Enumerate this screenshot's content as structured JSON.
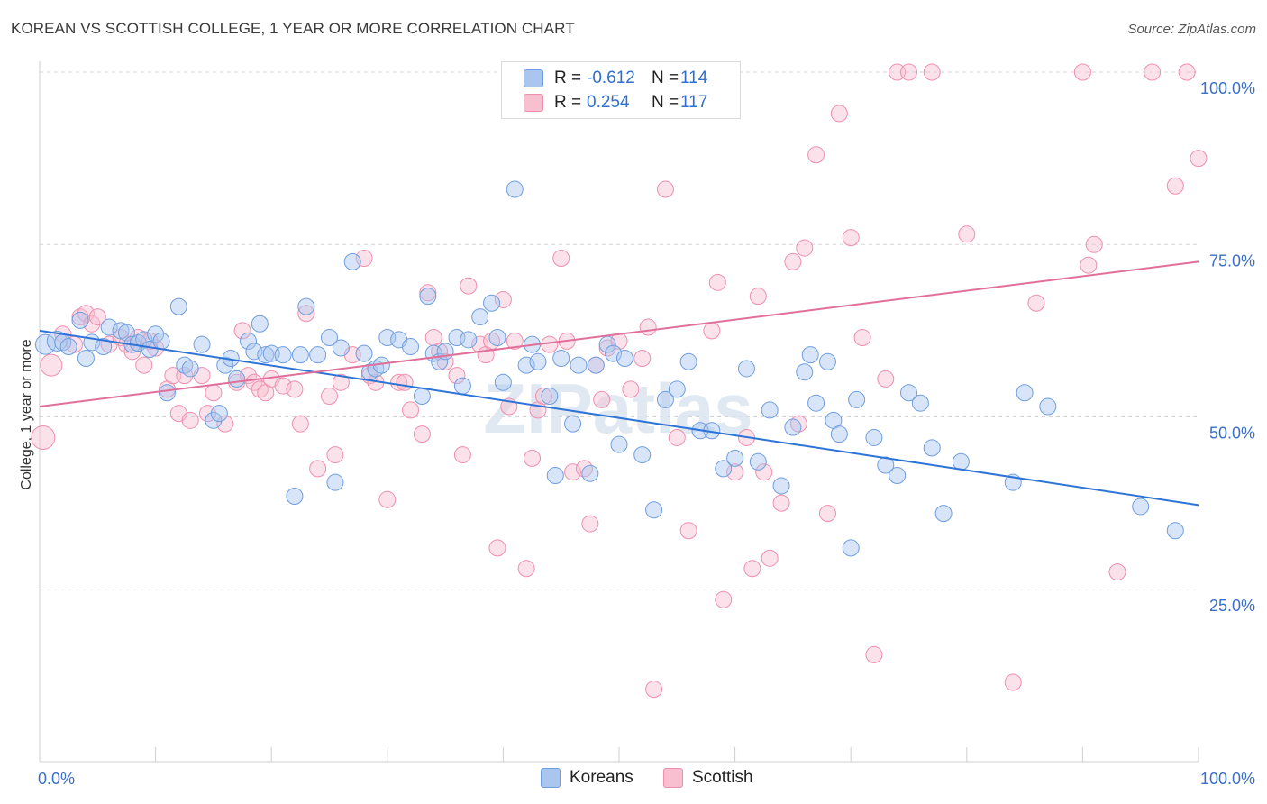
{
  "header": {
    "title": "KOREAN VS SCOTTISH COLLEGE, 1 YEAR OR MORE CORRELATION CHART",
    "source": "Source: ZipAtlas.com"
  },
  "legend": {
    "rows": [
      {
        "r_label": "R =",
        "r_value": "-0.612",
        "n_label": "N =",
        "n_value": "114"
      },
      {
        "r_label": "R =",
        "r_value": "0.254",
        "n_label": "N =",
        "n_value": "117"
      }
    ]
  },
  "bottom_legend": [
    "Koreans",
    "Scottish"
  ],
  "colors": {
    "koreans_fill": "#a9c6ef",
    "koreans_stroke": "#6f9ee0",
    "koreans_line": "#2e74d6",
    "scottish_fill": "#f7bfd0",
    "scottish_stroke": "#ee8fae",
    "scottish_line": "#e0709a",
    "axis_text": "#3a6fc9"
  },
  "chart_data": {
    "type": "scatter",
    "title": "KOREAN VS SCOTTISH COLLEGE, 1 YEAR OR MORE CORRELATION CHART",
    "xlabel": "",
    "ylabel": "College, 1 year or more",
    "xlim": [
      0,
      100
    ],
    "ylim": [
      0,
      100
    ],
    "x_tick_labels": [
      "0.0%",
      "100.0%"
    ],
    "y_tick_labels": [
      "25.0%",
      "50.0%",
      "75.0%",
      "100.0%"
    ],
    "y_ticks": [
      25,
      50,
      75,
      100
    ],
    "grid": true,
    "watermark": "ZIPatlas",
    "series": [
      {
        "name": "Koreans",
        "r": -0.612,
        "n": 114,
        "trend": {
          "x": [
            0,
            100
          ],
          "y": [
            62.5,
            37.2
          ]
        },
        "points": [
          [
            0.5,
            60.5
          ],
          [
            1.5,
            61
          ],
          [
            2,
            60.8
          ],
          [
            2.5,
            60.2
          ],
          [
            3.5,
            64
          ],
          [
            4,
            58.5
          ],
          [
            4.5,
            60.8
          ],
          [
            5.5,
            60.2
          ],
          [
            6,
            63
          ],
          [
            7,
            62.5
          ],
          [
            7.5,
            62.2
          ],
          [
            8,
            60.5
          ],
          [
            8.5,
            60.7
          ],
          [
            9,
            61.2
          ],
          [
            9.5,
            59.8
          ],
          [
            10,
            62
          ],
          [
            10.5,
            61
          ],
          [
            11,
            53.5
          ],
          [
            12,
            66
          ],
          [
            12.5,
            57.5
          ],
          [
            13,
            57
          ],
          [
            14,
            60.5
          ],
          [
            15,
            49.5
          ],
          [
            15.5,
            50.5
          ],
          [
            16,
            57.5
          ],
          [
            16.5,
            58.5
          ],
          [
            17,
            55.5
          ],
          [
            18,
            61
          ],
          [
            18.5,
            59.5
          ],
          [
            19,
            63.5
          ],
          [
            19.5,
            59
          ],
          [
            20,
            59.2
          ],
          [
            21,
            59
          ],
          [
            22,
            38.5
          ],
          [
            22.5,
            59
          ],
          [
            23,
            66
          ],
          [
            24,
            59
          ],
          [
            25,
            61.5
          ],
          [
            25.5,
            40.5
          ],
          [
            26,
            60
          ],
          [
            27,
            72.5
          ],
          [
            28,
            59.2
          ],
          [
            28.5,
            56.5
          ],
          [
            29,
            57
          ],
          [
            29.5,
            57.5
          ],
          [
            30,
            61.5
          ],
          [
            31,
            61.2
          ],
          [
            32,
            60.2
          ],
          [
            33,
            53
          ],
          [
            33.5,
            67.5
          ],
          [
            34,
            59.2
          ],
          [
            34.5,
            58
          ],
          [
            35,
            59.5
          ],
          [
            36,
            61.5
          ],
          [
            36.5,
            54.5
          ],
          [
            37,
            61.2
          ],
          [
            38,
            64.5
          ],
          [
            39,
            66.5
          ],
          [
            39.5,
            61.5
          ],
          [
            40,
            55
          ],
          [
            41,
            83
          ],
          [
            42,
            57.5
          ],
          [
            42.5,
            60.5
          ],
          [
            43,
            58
          ],
          [
            44,
            53
          ],
          [
            44.5,
            41.5
          ],
          [
            45,
            58.5
          ],
          [
            46,
            49
          ],
          [
            46.5,
            57.5
          ],
          [
            47.5,
            41.8
          ],
          [
            48,
            57.5
          ],
          [
            49,
            60.5
          ],
          [
            49.5,
            59.2
          ],
          [
            50,
            46
          ],
          [
            50.5,
            58.5
          ],
          [
            52,
            44.5
          ],
          [
            53,
            36.5
          ],
          [
            54,
            52.5
          ],
          [
            55,
            54
          ],
          [
            56,
            58
          ],
          [
            57,
            48
          ],
          [
            58,
            48
          ],
          [
            59,
            42.5
          ],
          [
            60,
            44
          ],
          [
            61,
            57
          ],
          [
            62,
            43.5
          ],
          [
            63,
            51
          ],
          [
            64,
            40
          ],
          [
            65,
            48.5
          ],
          [
            66,
            56.5
          ],
          [
            66.5,
            59
          ],
          [
            67,
            52
          ],
          [
            68,
            58
          ],
          [
            68.5,
            49.5
          ],
          [
            69,
            47.5
          ],
          [
            70,
            31
          ],
          [
            70.5,
            52.5
          ],
          [
            72,
            47
          ],
          [
            73,
            43
          ],
          [
            74,
            41.5
          ],
          [
            75,
            53.5
          ],
          [
            76,
            52
          ],
          [
            77,
            45.5
          ],
          [
            78,
            36
          ],
          [
            79.5,
            43.5
          ],
          [
            84,
            40.5
          ],
          [
            85,
            53.5
          ],
          [
            87,
            51.5
          ],
          [
            95,
            37
          ],
          [
            98,
            33.5
          ]
        ]
      },
      {
        "name": "Scottish",
        "r": 0.254,
        "n": 117,
        "trend": {
          "x": [
            0,
            100
          ],
          "y": [
            51.5,
            72.5
          ]
        },
        "points": [
          [
            0.3,
            47
          ],
          [
            1,
            57.5
          ],
          [
            2,
            62
          ],
          [
            3,
            60.5
          ],
          [
            3.5,
            64.5
          ],
          [
            4,
            65
          ],
          [
            4.5,
            63.5
          ],
          [
            5,
            64.5
          ],
          [
            6,
            60.5
          ],
          [
            7,
            61.5
          ],
          [
            7.5,
            60.5
          ],
          [
            8,
            59.5
          ],
          [
            8.5,
            61.5
          ],
          [
            9,
            57.5
          ],
          [
            9.5,
            61
          ],
          [
            10,
            60
          ],
          [
            11,
            54
          ],
          [
            11.5,
            56
          ],
          [
            12,
            50.5
          ],
          [
            12.5,
            56
          ],
          [
            13,
            49.5
          ],
          [
            14,
            56
          ],
          [
            14.5,
            50.5
          ],
          [
            15,
            53.5
          ],
          [
            16,
            49
          ],
          [
            17,
            55
          ],
          [
            17.5,
            62.5
          ],
          [
            18,
            56
          ],
          [
            18.5,
            55
          ],
          [
            19,
            54
          ],
          [
            19.5,
            53.5
          ],
          [
            20,
            55.5
          ],
          [
            21,
            54.5
          ],
          [
            22,
            54
          ],
          [
            22.5,
            49
          ],
          [
            23,
            65
          ],
          [
            24,
            42.5
          ],
          [
            25,
            53
          ],
          [
            25.5,
            44.5
          ],
          [
            26,
            55
          ],
          [
            27,
            59
          ],
          [
            28,
            73
          ],
          [
            28.5,
            56
          ],
          [
            29,
            55
          ],
          [
            30,
            38
          ],
          [
            31,
            55
          ],
          [
            31.5,
            55
          ],
          [
            32,
            51
          ],
          [
            33,
            47.5
          ],
          [
            33.5,
            68
          ],
          [
            34,
            61.5
          ],
          [
            34.5,
            59.5
          ],
          [
            35,
            58
          ],
          [
            36,
            56
          ],
          [
            36.5,
            44.5
          ],
          [
            37,
            69
          ],
          [
            38,
            60.5
          ],
          [
            38.5,
            59
          ],
          [
            39,
            61
          ],
          [
            39.5,
            31
          ],
          [
            40,
            67
          ],
          [
            40.5,
            51.5
          ],
          [
            41,
            61
          ],
          [
            42,
            28
          ],
          [
            42.5,
            44
          ],
          [
            43,
            51
          ],
          [
            43.5,
            53
          ],
          [
            44,
            60.5
          ],
          [
            45,
            73
          ],
          [
            45.5,
            61
          ],
          [
            46,
            42
          ],
          [
            47,
            42.5
          ],
          [
            47.5,
            34.5
          ],
          [
            48,
            57.5
          ],
          [
            48.5,
            52.5
          ],
          [
            49,
            60
          ],
          [
            50,
            61
          ],
          [
            51,
            54
          ],
          [
            52,
            58.5
          ],
          [
            52.5,
            63
          ],
          [
            53,
            10.5
          ],
          [
            54,
            83
          ],
          [
            55,
            47
          ],
          [
            56,
            33.5
          ],
          [
            57,
            94.5
          ],
          [
            58,
            62.5
          ],
          [
            58.5,
            69.5
          ],
          [
            59,
            23.5
          ],
          [
            60,
            42
          ],
          [
            61,
            47
          ],
          [
            61.5,
            28
          ],
          [
            62,
            67.5
          ],
          [
            62.5,
            42
          ],
          [
            63,
            29.5
          ],
          [
            64,
            37.5
          ],
          [
            65,
            72.5
          ],
          [
            65.5,
            49
          ],
          [
            66,
            74.5
          ],
          [
            67,
            88
          ],
          [
            68,
            36
          ],
          [
            69,
            94
          ],
          [
            70,
            76
          ],
          [
            71,
            61.5
          ],
          [
            72,
            15.5
          ],
          [
            73,
            55.5
          ],
          [
            74,
            100
          ],
          [
            75,
            100
          ],
          [
            77,
            100
          ],
          [
            80,
            76.5
          ],
          [
            84,
            11.5
          ],
          [
            86,
            66.5
          ],
          [
            90,
            100
          ],
          [
            90.5,
            72
          ],
          [
            91,
            75
          ],
          [
            93,
            27.5
          ],
          [
            96,
            100
          ],
          [
            98,
            83.5
          ],
          [
            99,
            100
          ],
          [
            100,
            87.5
          ]
        ]
      }
    ]
  }
}
